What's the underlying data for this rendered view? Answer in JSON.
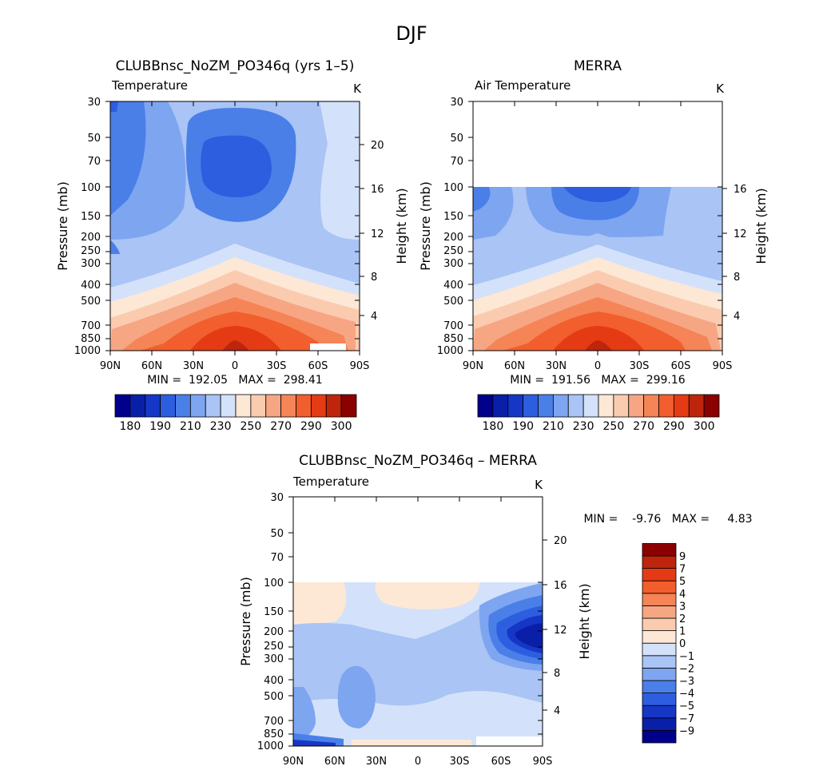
{
  "figure_title": "DJF",
  "chart_data": [
    {
      "type": "contour",
      "title": "CLUBBnsc_NoZM_PO346q (yrs 1–5)",
      "subtitle_left": "Temperature",
      "subtitle_right": "K",
      "ylabel": "Pressure (mb)",
      "ylabel_right": "Height (km)",
      "x_ticks": [
        "90N",
        "60N",
        "30N",
        "0",
        "30S",
        "60S",
        "90S"
      ],
      "x_range": [
        90,
        -90
      ],
      "y_scale": "log",
      "y_range": [
        1000,
        30
      ],
      "y_ticks": [
        30,
        50,
        70,
        100,
        150,
        200,
        250,
        300,
        400,
        500,
        700,
        850,
        1000
      ],
      "y_right_ticks": [
        4,
        8,
        12,
        16,
        20
      ],
      "data_top_pressure": 30,
      "min": "192.05",
      "max": "298.41",
      "stats_text": "MIN =  192.05   MAX =  298.41",
      "colorbar": {
        "orientation": "horizontal",
        "colors": [
          "#00008b",
          "#0a1fa8",
          "#1637c5",
          "#2d5ee0",
          "#4a7fe8",
          "#7ea5f0",
          "#a9c4f5",
          "#d3e2fa",
          "#fde8d6",
          "#fbcbb0",
          "#f7a684",
          "#f58457",
          "#f25e2d",
          "#e43b14",
          "#bd250c",
          "#8b0000"
        ],
        "labels": [
          "180",
          "190",
          "210",
          "230",
          "250",
          "270",
          "290",
          "300"
        ]
      }
    },
    {
      "type": "contour",
      "title": "MERRA",
      "subtitle_left": "Air Temperature",
      "subtitle_right": "K",
      "ylabel": "Pressure (mb)",
      "ylabel_right": "Height (km)",
      "x_ticks": [
        "90N",
        "60N",
        "30N",
        "0",
        "30S",
        "60S",
        "90S"
      ],
      "x_range": [
        90,
        -90
      ],
      "y_scale": "log",
      "y_range": [
        1000,
        30
      ],
      "y_ticks": [
        30,
        50,
        70,
        100,
        150,
        200,
        250,
        300,
        400,
        500,
        700,
        850,
        1000
      ],
      "y_right_ticks": [
        4,
        8,
        12,
        16
      ],
      "data_top_pressure": 100,
      "min": "191.56",
      "max": "299.16",
      "stats_text": "MIN =  191.56   MAX =  299.16",
      "colorbar": {
        "orientation": "horizontal",
        "colors": [
          "#00008b",
          "#0a1fa8",
          "#1637c5",
          "#2d5ee0",
          "#4a7fe8",
          "#7ea5f0",
          "#a9c4f5",
          "#d3e2fa",
          "#fde8d6",
          "#fbcbb0",
          "#f7a684",
          "#f58457",
          "#f25e2d",
          "#e43b14",
          "#bd250c",
          "#8b0000"
        ],
        "labels": [
          "180",
          "190",
          "210",
          "230",
          "250",
          "270",
          "290",
          "300"
        ]
      }
    },
    {
      "type": "contour",
      "title": "CLUBBnsc_NoZM_PO346q – MERRA",
      "subtitle_left": "Temperature",
      "subtitle_right": "K",
      "ylabel": "Pressure (mb)",
      "ylabel_right": "Height (km)",
      "x_ticks": [
        "90N",
        "60N",
        "30N",
        "0",
        "30S",
        "60S",
        "90S"
      ],
      "x_range": [
        90,
        -90
      ],
      "y_scale": "log",
      "y_range": [
        1000,
        30
      ],
      "y_ticks": [
        30,
        50,
        70,
        100,
        150,
        200,
        250,
        300,
        400,
        500,
        700,
        850,
        1000
      ],
      "y_right_ticks": [
        4,
        8,
        12,
        16,
        20
      ],
      "data_top_pressure": 100,
      "min": "-9.76",
      "max": "4.83",
      "stats_text": "MIN =    -9.76   MAX =     4.83",
      "colorbar": {
        "orientation": "vertical",
        "colors": [
          "#00008b",
          "#0a1fa8",
          "#1637c5",
          "#2d5ee0",
          "#4a7fe8",
          "#7ea5f0",
          "#a9c4f5",
          "#d3e2fa",
          "#fde8d6",
          "#fbcbb0",
          "#f7a684",
          "#f58457",
          "#f25e2d",
          "#e43b14",
          "#bd250c",
          "#8b0000"
        ],
        "labels": [
          "−9",
          "−7",
          "−5",
          "−4",
          "−3",
          "−2",
          "−1",
          "0",
          "1",
          "2",
          "3",
          "4",
          "5",
          "7",
          "9"
        ]
      }
    }
  ]
}
